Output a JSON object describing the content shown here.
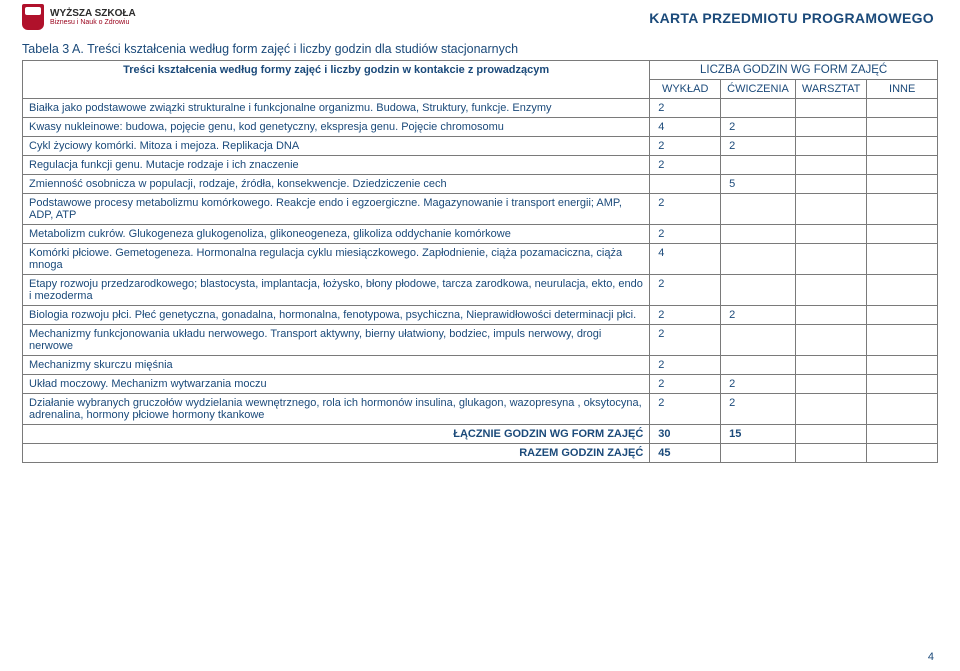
{
  "logo": {
    "line1": "WYŻSZA SZKOŁA",
    "line2": "Biznesu i Nauk o Zdrowiu"
  },
  "header_right": "KARTA PRZEDMIOTU PROGRAMOWEGO",
  "table_caption": "Tabela 3 A. Treści kształcenia według form zajęć i liczby godzin dla studiów stacjonarnych",
  "col_main": "Treści kształcenia według formy zajęć i liczby godzin w kontakcie z prowadzącym",
  "col_group": "LICZBA GODZIN WG FORM ZAJĘĆ",
  "cols": [
    "WYKŁAD",
    "ĆWICZENIA",
    "WARSZTAT",
    "INNE"
  ],
  "rows": [
    {
      "topic": "Białka jako podstawowe związki strukturalne i funkcjonalne organizmu. Budowa, Struktury, funkcje. Enzymy",
      "c": [
        "2",
        "",
        "",
        ""
      ]
    },
    {
      "topic": "Kwasy nukleinowe: budowa, pojęcie genu, kod genetyczny, ekspresja genu. Pojęcie chromosomu",
      "c": [
        "4",
        "2",
        "",
        ""
      ]
    },
    {
      "topic": "Cykl życiowy komórki. Mitoza i mejoza. Replikacja DNA",
      "c": [
        "2",
        "2",
        "",
        ""
      ]
    },
    {
      "topic": "Regulacja funkcji genu. Mutacje rodzaje i ich znaczenie",
      "c": [
        "2",
        "",
        "",
        ""
      ]
    },
    {
      "topic": "Zmienność osobnicza w populacji, rodzaje, źródła, konsekwencje. Dziedziczenie cech",
      "c": [
        "",
        "5",
        "",
        ""
      ]
    },
    {
      "topic": "Podstawowe procesy metabolizmu  komórkowego. Reakcje endo i egzoergiczne. Magazynowanie i transport energii; AMP, ADP, ATP",
      "c": [
        "2",
        "",
        "",
        ""
      ]
    },
    {
      "topic": "Metabolizm cukrów. Glukogeneza glukogenoliza, glikoneogeneza,  glikoliza oddychanie komórkowe",
      "c": [
        "2",
        "",
        "",
        ""
      ]
    },
    {
      "topic": "Komórki płciowe. Gemetogeneza. Hormonalna regulacja cyklu miesiączkowego. Zapłodnienie, ciąża pozamaciczna, ciąża mnoga",
      "c": [
        "4",
        "",
        "",
        ""
      ]
    },
    {
      "topic": "Etapy rozwoju przedzarodkowego; blastocysta, implantacja, łożysko, błony płodowe, tarcza zarodkowa, neurulacja, ekto, endo i mezoderma",
      "c": [
        "2",
        "",
        "",
        ""
      ]
    },
    {
      "topic": "Biologia rozwoju płci. Płeć genetyczna, gonadalna, hormonalna, fenotypowa, psychiczna, Nieprawidłowości determinacji płci.",
      "c": [
        "2",
        "2",
        "",
        ""
      ]
    },
    {
      "topic": "Mechanizmy funkcjonowania układu nerwowego. Transport aktywny, bierny ułatwiony, bodziec, impuls nerwowy, drogi nerwowe",
      "c": [
        "2",
        "",
        "",
        ""
      ]
    },
    {
      "topic": "Mechanizmy skurczu mięśnia",
      "c": [
        "2",
        "",
        "",
        ""
      ]
    },
    {
      "topic": "Układ moczowy. Mechanizm wytwarzania moczu",
      "c": [
        "2",
        "2",
        "",
        ""
      ]
    },
    {
      "topic": "Działanie wybranych gruczołów wydzielania wewnętrznego, rola ich hormonów insulina, glukagon, wazopresyna , oksytocyna, adrenalina, hormony płciowe hormony tkankowe",
      "c": [
        "2",
        "2",
        "",
        ""
      ]
    }
  ],
  "sum1": {
    "label": "ŁĄCZNIE GODZIN WG FORM ZAJĘĆ",
    "c": [
      "30",
      "15",
      "",
      ""
    ]
  },
  "sum2": {
    "label": "RAZEM GODZIN ZAJĘĆ",
    "c": [
      "45",
      "",
      "",
      ""
    ]
  },
  "page_no": "4"
}
